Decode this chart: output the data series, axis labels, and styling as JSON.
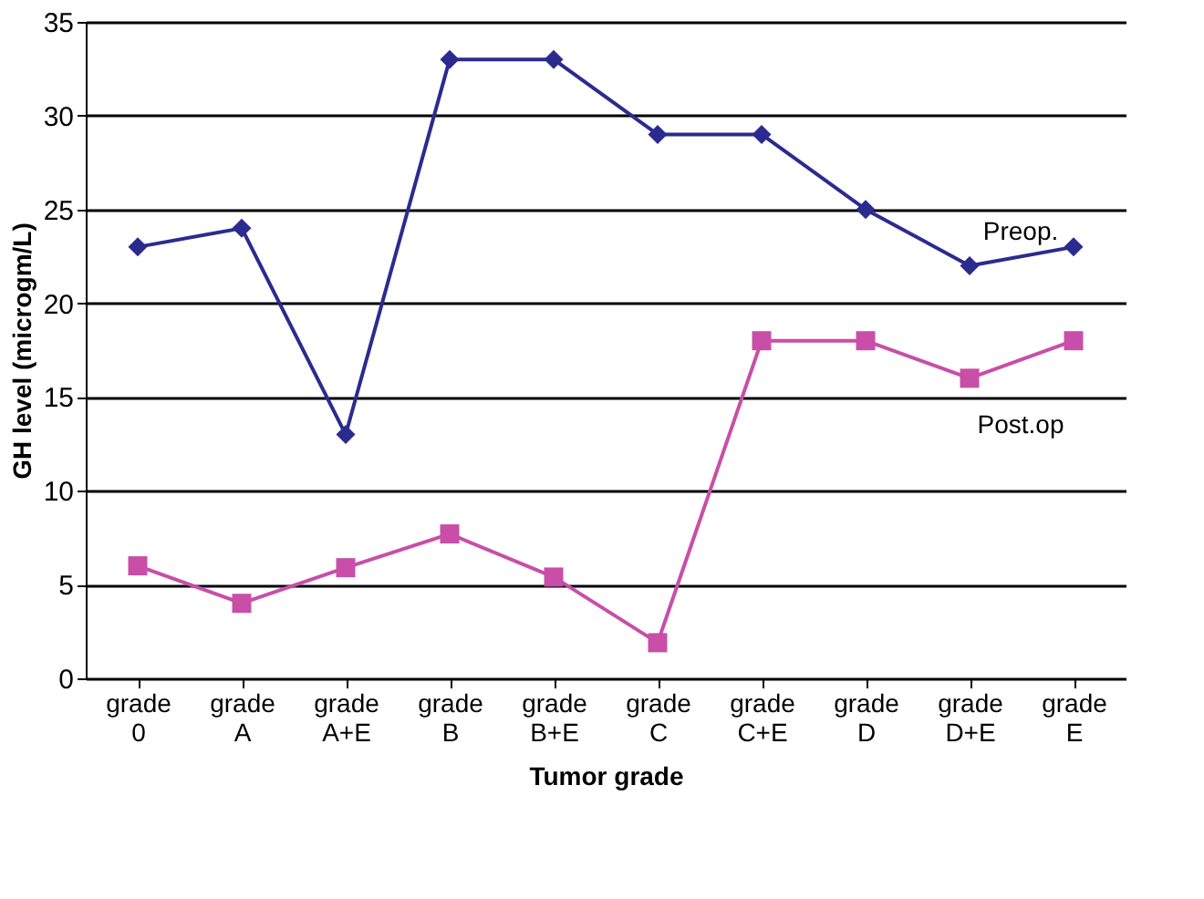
{
  "chart_data": {
    "type": "line",
    "xlabel": "Tumor grade",
    "ylabel": "GH level (microgm/L)",
    "categories": [
      "grade 0",
      "grade A",
      "grade A+E",
      "grade B",
      "grade B+E",
      "grade C",
      "grade C+E",
      "grade D",
      "grade D+E",
      "grade E"
    ],
    "series": [
      {
        "name": "Preop.",
        "color": "#2b2b8f",
        "marker": "diamond",
        "values": [
          23,
          24,
          13,
          33,
          33,
          29,
          29,
          25,
          22,
          23
        ]
      },
      {
        "name": "Post.op",
        "color": "#c84ea8",
        "marker": "square",
        "values": [
          6,
          4,
          5.9,
          7.7,
          5.4,
          1.9,
          18,
          18,
          16,
          18
        ]
      }
    ],
    "ylim": [
      0,
      35
    ],
    "yticks": [
      0,
      5,
      10,
      15,
      20,
      25,
      30,
      35
    ],
    "grid": "y",
    "legend": false
  }
}
